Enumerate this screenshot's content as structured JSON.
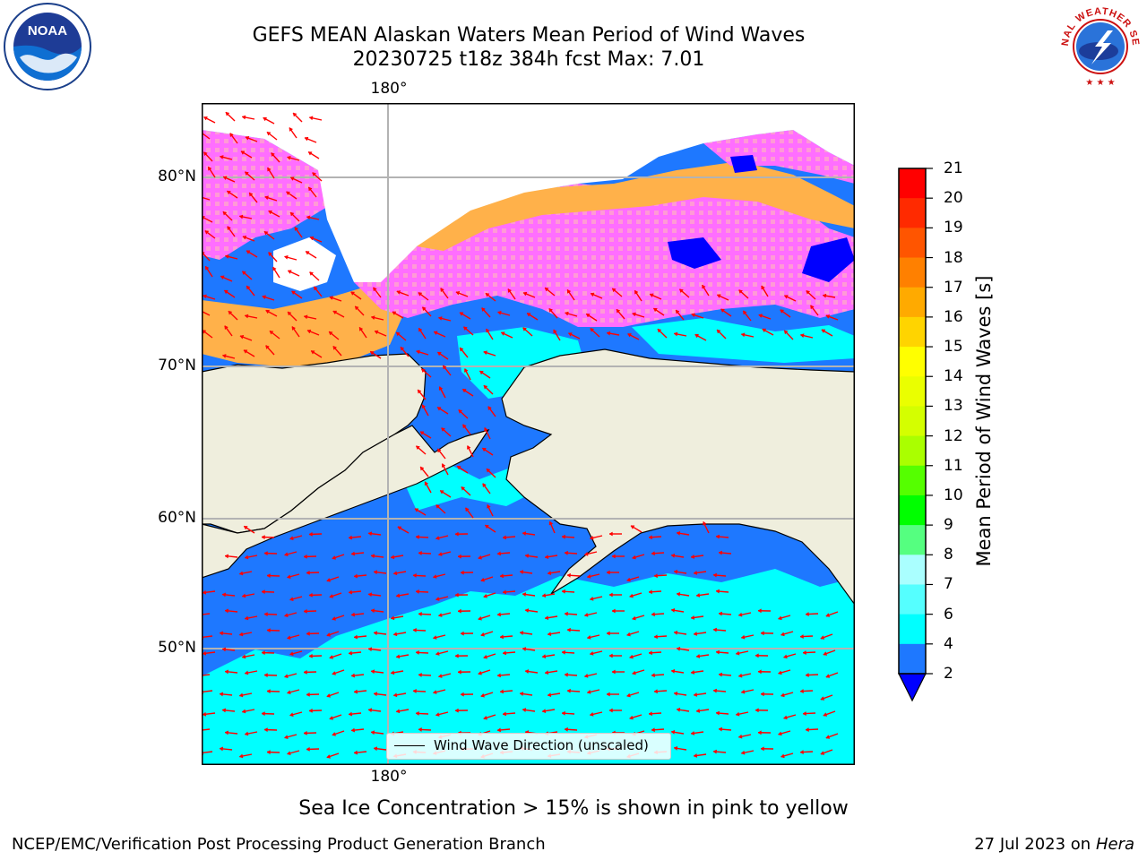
{
  "title": {
    "line1": "GEFS MEAN Alaskan Waters Mean Period of Wind Waves",
    "line2": "20230725 t18z 384h fcst   Max: 7.01"
  },
  "map": {
    "lon_label_top": "180°",
    "lon_label_bottom": "180°",
    "lat_labels": [
      "80°N",
      "70°N",
      "60°N",
      "50°N"
    ],
    "legend": "Wind Wave Direction (unscaled)",
    "colors": {
      "land": "#efeedd",
      "ocean_2_4": "#1e78ff",
      "ocean_4_6": "#00ffff",
      "below_2": "#0000ff",
      "ice_pink": "#ff6eff",
      "ice_orange": "#ffb14a",
      "arrow": "#ff0000",
      "grid": "#b3b3b3"
    }
  },
  "colorbar": {
    "label": "Mean Period of Wind Waves [s]",
    "ticks": [
      "21",
      "20",
      "19",
      "18",
      "17",
      "16",
      "15",
      "14",
      "13",
      "12",
      "11",
      "10",
      "9",
      "8",
      "7",
      "6",
      "4",
      "2"
    ],
    "colors": [
      "#ff0000",
      "#ff2a00",
      "#ff5500",
      "#ff8000",
      "#ffaa00",
      "#ffd400",
      "#ffff00",
      "#eaff00",
      "#d4ff00",
      "#aaff00",
      "#55ff00",
      "#00ff00",
      "#55ff80",
      "#aaffff",
      "#55ffff",
      "#00ffff",
      "#1e78ff"
    ],
    "extend_color": "#0000ff"
  },
  "note": "Sea Ice Concentration > 15% is shown in pink to yellow",
  "footer": {
    "left": "NCEP/EMC/Verification Post Processing Product Generation Branch",
    "date": "27 Jul 2023 on",
    "host": "Hera"
  },
  "logos": {
    "noaa_text": "NOAA",
    "nws_text": "NATIONAL WEATHER SERVICE"
  }
}
